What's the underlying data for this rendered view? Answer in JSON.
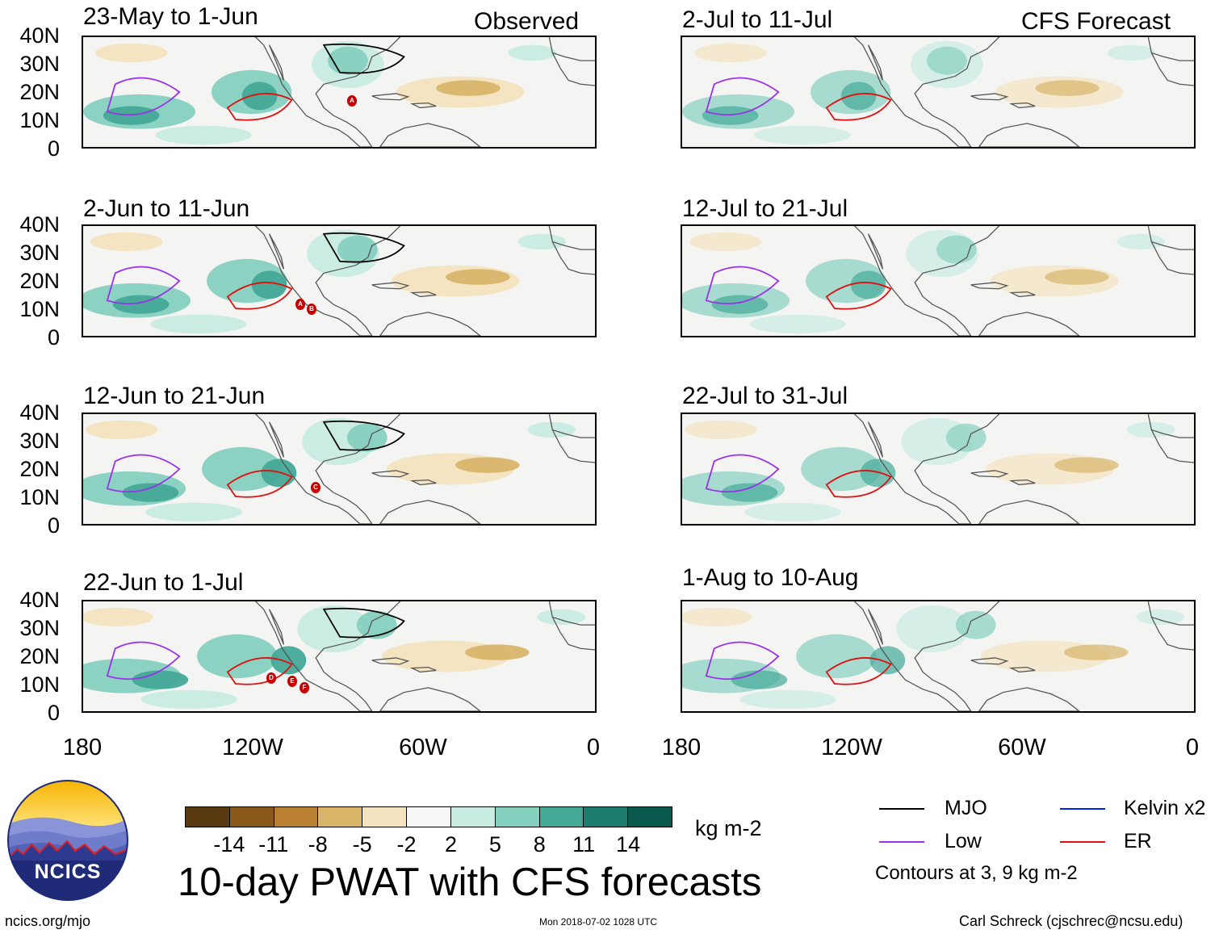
{
  "panels": [
    {
      "id": "p1",
      "title": "23-May to 1-Jun",
      "tag": "Observed"
    },
    {
      "id": "p2",
      "title": "2-Jun to 11-Jun",
      "tag": ""
    },
    {
      "id": "p3",
      "title": "12-Jun to 21-Jun",
      "tag": ""
    },
    {
      "id": "p4",
      "title": "22-Jun to 1-Jul",
      "tag": ""
    },
    {
      "id": "p5",
      "title": "2-Jul to 11-Jul",
      "tag": "CFS Forecast"
    },
    {
      "id": "p6",
      "title": "12-Jul to 21-Jul",
      "tag": ""
    },
    {
      "id": "p7",
      "title": "22-Jul to 31-Jul",
      "tag": ""
    },
    {
      "id": "p8",
      "title": "1-Aug to 10-Aug",
      "tag": ""
    }
  ],
  "axes": {
    "y_labels": [
      "40N",
      "30N",
      "20N",
      "10N",
      "0"
    ],
    "x_labels": [
      "180",
      "120W",
      "60W",
      "0"
    ]
  },
  "storm_markers": {
    "p1": [
      "A"
    ],
    "p2": [
      "A",
      "B"
    ],
    "p3": [
      "C"
    ],
    "p4": [
      "D",
      "E",
      "F"
    ]
  },
  "colorbar": {
    "colors": [
      "#5a3a10",
      "#8a5a1a",
      "#b88030",
      "#d9b56a",
      "#f3e3bf",
      "#f7f7f7",
      "#c8ebe2",
      "#86d0bf",
      "#45a998",
      "#1c7c70",
      "#0b5a50"
    ],
    "labels": [
      "-14",
      "-11",
      "-8",
      "-5",
      "-2",
      "2",
      "5",
      "8",
      "11",
      "14"
    ],
    "units": "kg m-2"
  },
  "legend": {
    "items": [
      {
        "label": "MJO",
        "color": "#000000"
      },
      {
        "label": "Kelvin x2",
        "color": "#0022dd"
      },
      {
        "label": "Low",
        "color": "#9a30e8"
      },
      {
        "label": "ER",
        "color": "#e01010"
      }
    ],
    "note": "Contours at 3, 9 kg m-2"
  },
  "main_title": "10-day PWAT with CFS forecasts",
  "logo_text": "NCICS",
  "footer": {
    "url": "ncics.org/mjo",
    "timestamp": "Mon 2018-07-02 1028 UTC",
    "credit": "Carl Schreck (cjschrec@ncsu.edu)"
  }
}
